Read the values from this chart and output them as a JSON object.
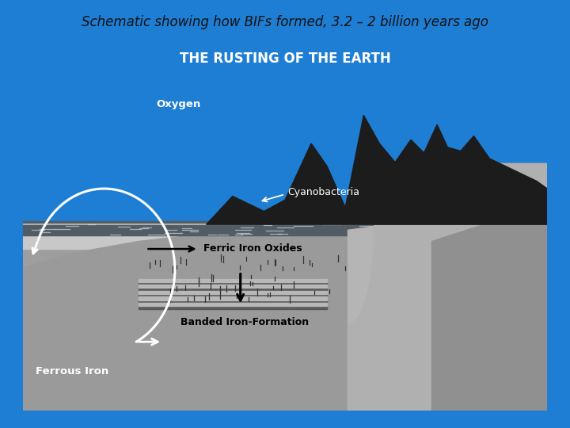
{
  "title": "Schematic showing how BIFs formed, 3.2 – 2 billion years ago",
  "title_fontsize": 12,
  "title_color": "#111111",
  "background_color": "#1e7ed4",
  "inner_title": "THE RUSTING OF THE EARTH",
  "labels": {
    "oxygen": "Oxygen",
    "cyanobacteria": "Cyanobacteria",
    "ferric": "Ferric Iron Oxides",
    "banded": "Banded Iron-Formation",
    "ferrous": "Ferrous Iron"
  },
  "sky_top": "#7a8fa8",
  "sky_bottom": "#a0aaB5",
  "water_band": "#585f6a",
  "seafloor_mid": "#969696",
  "seafloor_light": "#b0b0b0",
  "seafloor_deep": "#7a7a7a",
  "mountain_color": "#1c1c1c",
  "slope_color": "#aaaaaa",
  "slope_dark": "#888888",
  "white_line": "#ffffff",
  "particle_color": "#444444"
}
